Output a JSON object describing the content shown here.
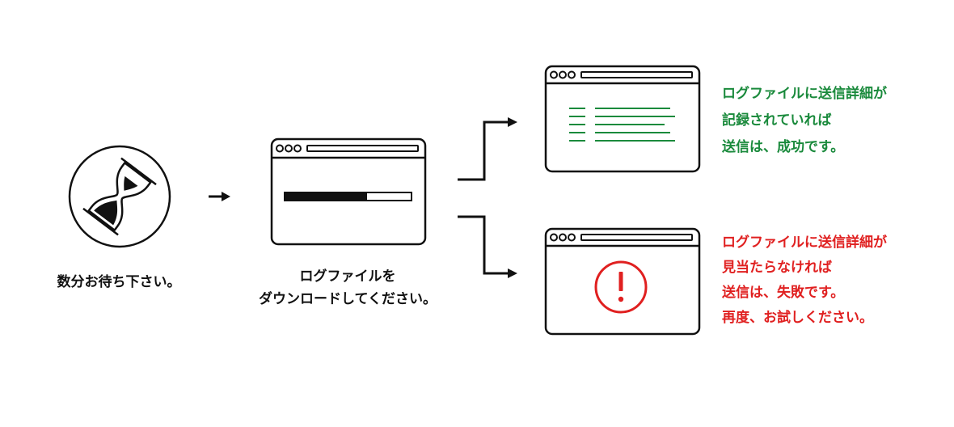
{
  "colors": {
    "ink": "#111111",
    "success": "#1a8a3c",
    "error": "#e02020",
    "background": "#ffffff"
  },
  "icons": {
    "wait": "hourglass-icon",
    "download": "browser-window-progress-icon",
    "success": "browser-window-text-lines-icon",
    "failure": "browser-window-exclamation-icon"
  },
  "steps": {
    "wait": {
      "text": "数分お待ち下さい。"
    },
    "download": {
      "line1": "ログファイルを",
      "line2": "ダウンロードしてください。",
      "progress_fraction": 0.65
    }
  },
  "outcomes": {
    "success": {
      "line1": "ログファイルに送信詳細が",
      "line2": "記録されていれば",
      "line3": "送信は、成功です。"
    },
    "failure": {
      "line1": "ログファイルに送信詳細が",
      "line2": "見当たらなければ",
      "line3": "送信は、失敗です。",
      "line4": "再度、お試しください。"
    }
  }
}
